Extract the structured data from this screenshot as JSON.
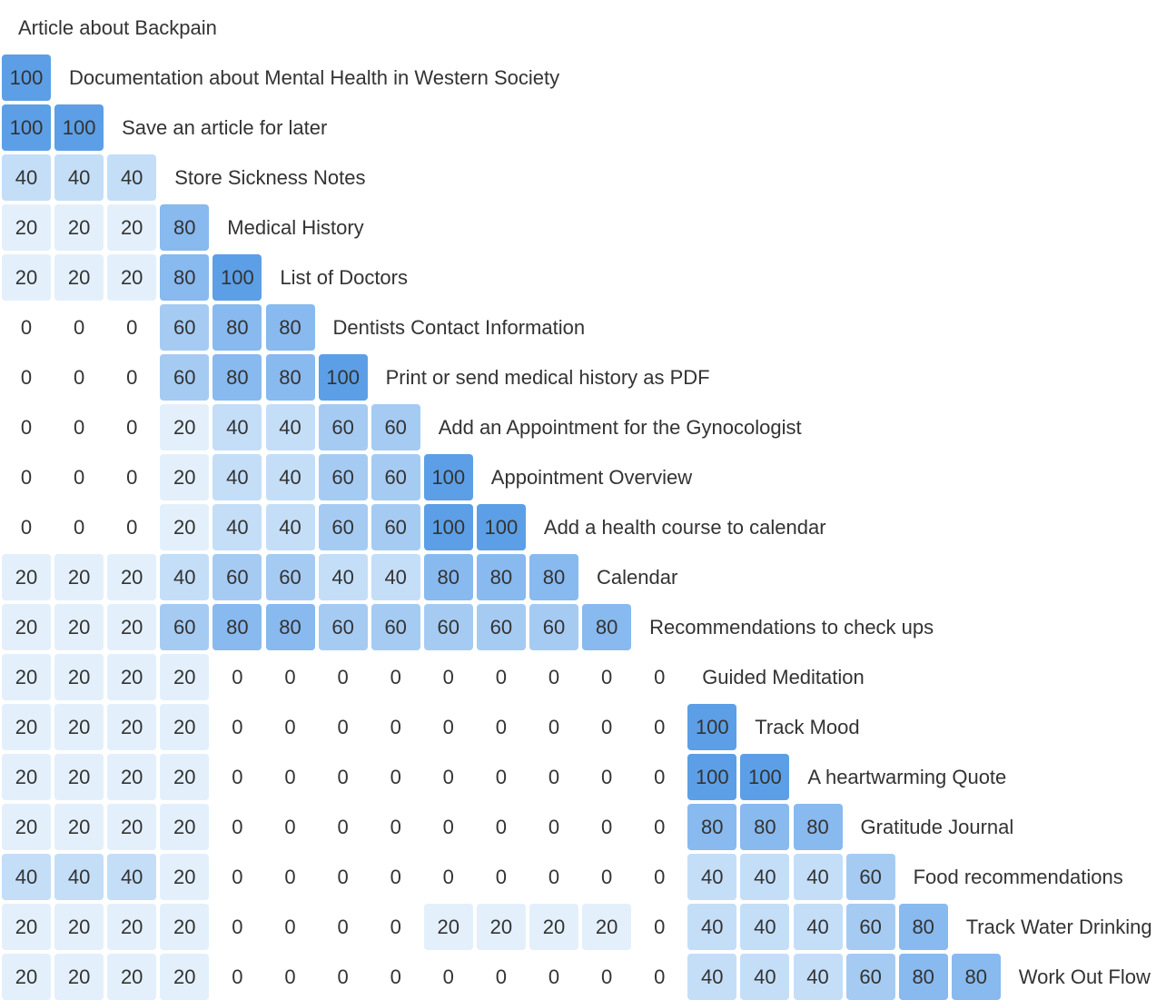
{
  "chart_data": {
    "type": "heatmap",
    "shape": "lower-triangular",
    "colors": {
      "0": "#ffffff",
      "20": "#e3f0fc",
      "40": "#c4def8",
      "60": "#a6cbf3",
      "80": "#88b9ef",
      "100": "#5c9fe6"
    },
    "rows": [
      {
        "label": "Article about Backpain",
        "values": []
      },
      {
        "label": "Documentation about Mental Health in Western Society",
        "values": [
          100
        ]
      },
      {
        "label": "Save an article for later",
        "values": [
          100,
          100
        ]
      },
      {
        "label": "Store Sickness Notes",
        "values": [
          40,
          40,
          40
        ]
      },
      {
        "label": "Medical History",
        "values": [
          20,
          20,
          20,
          80
        ]
      },
      {
        "label": "List of Doctors",
        "values": [
          20,
          20,
          20,
          80,
          100
        ]
      },
      {
        "label": "Dentists Contact Information",
        "values": [
          0,
          0,
          0,
          60,
          80,
          80
        ]
      },
      {
        "label": "Print or send medical history as PDF",
        "values": [
          0,
          0,
          0,
          60,
          80,
          80,
          100
        ]
      },
      {
        "label": "Add an Appointment for the Gynocologist",
        "values": [
          0,
          0,
          0,
          20,
          40,
          40,
          60,
          60
        ]
      },
      {
        "label": "Appointment Overview",
        "values": [
          0,
          0,
          0,
          20,
          40,
          40,
          60,
          60,
          100
        ]
      },
      {
        "label": "Add a health course to calendar",
        "values": [
          0,
          0,
          0,
          20,
          40,
          40,
          60,
          60,
          100,
          100
        ]
      },
      {
        "label": "Calendar",
        "values": [
          20,
          20,
          20,
          40,
          60,
          60,
          40,
          40,
          80,
          80,
          80
        ]
      },
      {
        "label": "Recommendations to check ups",
        "values": [
          20,
          20,
          20,
          60,
          80,
          80,
          60,
          60,
          60,
          60,
          60,
          80
        ]
      },
      {
        "label": "Guided Meditation",
        "values": [
          20,
          20,
          20,
          20,
          0,
          0,
          0,
          0,
          0,
          0,
          0,
          0,
          0
        ]
      },
      {
        "label": "Track Mood",
        "values": [
          20,
          20,
          20,
          20,
          0,
          0,
          0,
          0,
          0,
          0,
          0,
          0,
          0,
          100
        ]
      },
      {
        "label": "A heartwarming Quote",
        "values": [
          20,
          20,
          20,
          20,
          0,
          0,
          0,
          0,
          0,
          0,
          0,
          0,
          0,
          100,
          100
        ]
      },
      {
        "label": "Gratitude Journal",
        "values": [
          20,
          20,
          20,
          20,
          0,
          0,
          0,
          0,
          0,
          0,
          0,
          0,
          0,
          80,
          80,
          80
        ]
      },
      {
        "label": "Food recommendations",
        "values": [
          40,
          40,
          40,
          20,
          0,
          0,
          0,
          0,
          0,
          0,
          0,
          0,
          0,
          40,
          40,
          40,
          60
        ]
      },
      {
        "label": "Track Water Drinking",
        "values": [
          20,
          20,
          20,
          20,
          0,
          0,
          0,
          0,
          20,
          20,
          20,
          20,
          0,
          40,
          40,
          40,
          60,
          80
        ]
      },
      {
        "label": "Work Out Flow",
        "values": [
          20,
          20,
          20,
          20,
          0,
          0,
          0,
          0,
          0,
          0,
          0,
          0,
          0,
          40,
          40,
          40,
          60,
          80,
          80
        ]
      }
    ]
  }
}
